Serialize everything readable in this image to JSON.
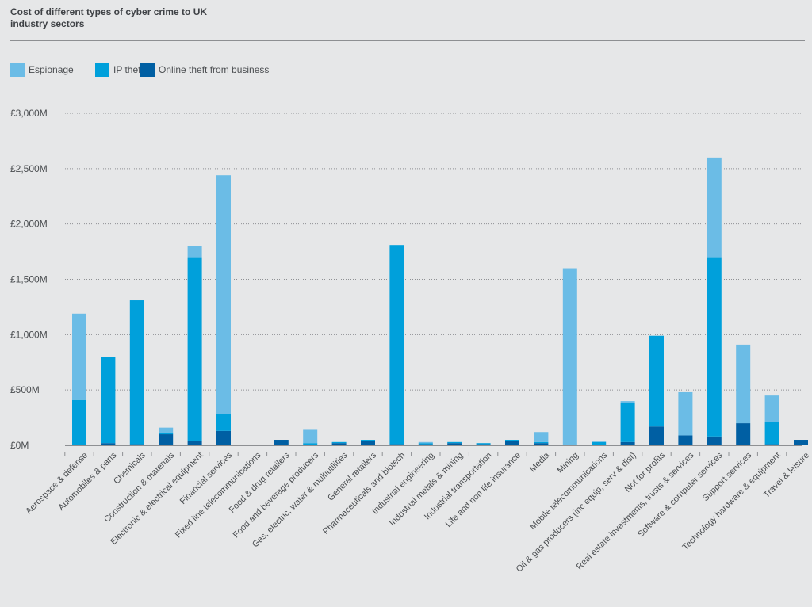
{
  "title": "Cost of different types of cyber crime to UK industry sectors",
  "legend": [
    {
      "label": "Espionage",
      "color": "#6bbce6"
    },
    {
      "label": "IP theft",
      "color": "#00a0db"
    },
    {
      "label": "Online theft from business",
      "color": "#005fa3"
    }
  ],
  "chart_data": {
    "type": "bar",
    "stacked": true,
    "title": "Cost of different types of cyber crime to UK industry sectors",
    "xlabel": "",
    "ylabel": "",
    "ylim": [
      0,
      3000
    ],
    "yticks": [
      0,
      500,
      1000,
      1500,
      2000,
      2500,
      3000
    ],
    "ytick_labels": [
      "£0M",
      "£500M",
      "£1,000M",
      "£1,500M",
      "£2,000M",
      "£2,500M",
      "£3,000M"
    ],
    "grid": true,
    "legend_position": "top-left",
    "categories": [
      "Aerospace & defense",
      "Automobiles & parts",
      "Chemicals",
      "Construction & materials",
      "Electronic & electrical equipment",
      "Financial services",
      "Fixed line telecommunications",
      "Food & drug retailers",
      "Food and beverage producers",
      "Gas, electric, water & multiutilities",
      "General retailers",
      "Pharmaceuticals and biotech",
      "Industrial engineering",
      "Industrial metals & mining",
      "Industrial transportation",
      "Life and non life insurance",
      "Media",
      "Mining",
      "Mobile telecommunications",
      "Oil & gas producers (inc equip, serv & dist)",
      "Not for profits",
      "Real estate investments, trusts & services",
      "Software & computer services",
      "Support services",
      "Technology hardware & equipment",
      "Travel & leisure"
    ],
    "series": [
      {
        "name": "Online theft from business",
        "color": "#005fa3",
        "values": [
          0,
          20,
          10,
          100,
          40,
          130,
          0,
          50,
          0,
          20,
          40,
          10,
          10,
          20,
          10,
          40,
          20,
          0,
          0,
          30,
          170,
          90,
          80,
          200,
          10,
          50
        ]
      },
      {
        "name": "IP theft",
        "color": "#00a0db",
        "values": [
          410,
          780,
          1300,
          10,
          1660,
          150,
          0,
          0,
          20,
          10,
          10,
          1800,
          10,
          10,
          10,
          10,
          10,
          0,
          30,
          350,
          820,
          0,
          1620,
          0,
          200,
          0
        ]
      },
      {
        "name": "Espionage",
        "color": "#6bbce6",
        "values": [
          780,
          0,
          0,
          50,
          100,
          2160,
          5,
          0,
          120,
          0,
          0,
          0,
          10,
          0,
          0,
          0,
          90,
          1600,
          5,
          20,
          0,
          390,
          900,
          710,
          240,
          0
        ]
      }
    ]
  }
}
